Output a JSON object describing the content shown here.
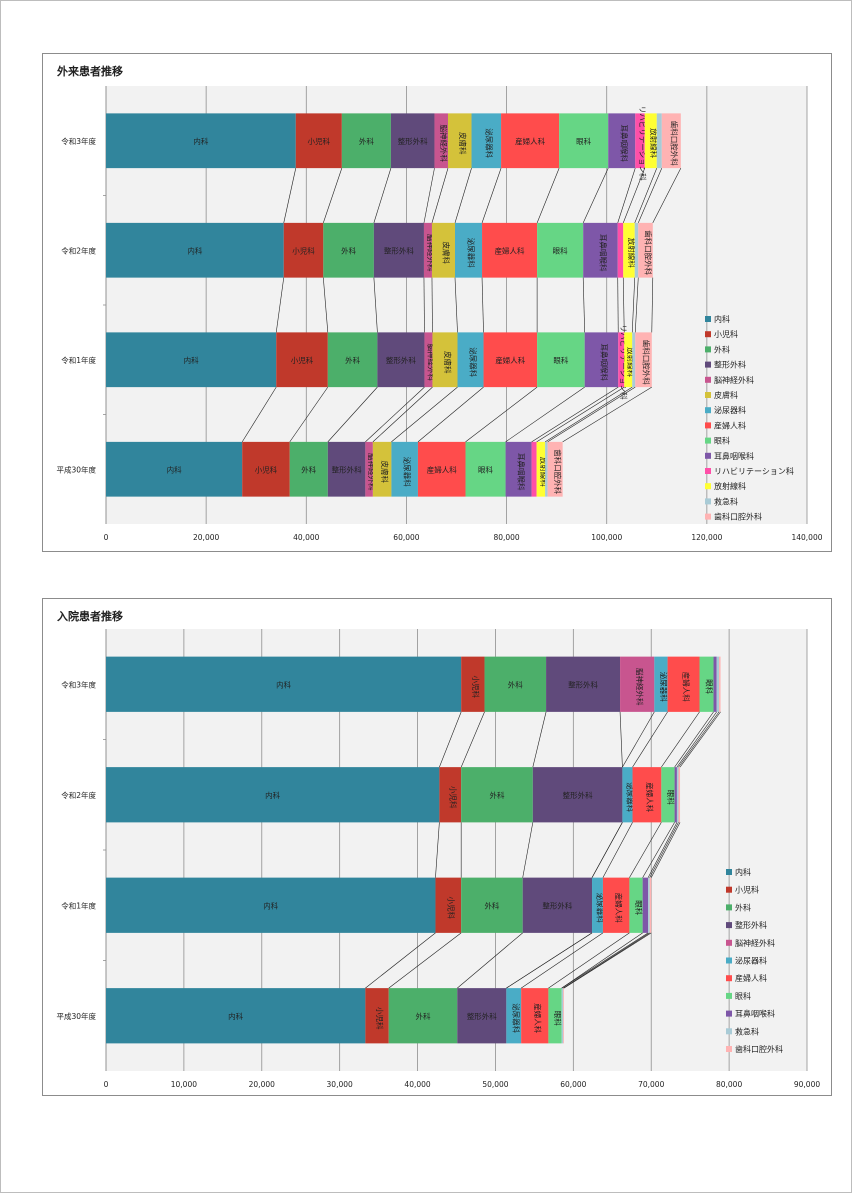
{
  "chart_data": [
    {
      "type": "bar",
      "stacked": true,
      "orientation": "horizontal",
      "title": "外来患者推移",
      "categories": [
        "令和3年度",
        "令和2年度",
        "令和1年度",
        "平成30年度"
      ],
      "xlim": [
        0,
        140000
      ],
      "xticks": [
        0,
        20000,
        40000,
        60000,
        80000,
        100000,
        120000,
        140000
      ],
      "xtick_labels": [
        "0",
        "20,000",
        "40,000",
        "60,000",
        "80,000",
        "100,000",
        "120,000",
        "140,000"
      ],
      "grid": true,
      "legend": "right",
      "series_lines": true,
      "series": [
        {
          "name": "内科",
          "color": "#31859c",
          "values": [
            37900,
            35500,
            34000,
            27200
          ]
        },
        {
          "name": "小児科",
          "color": "#c0392b",
          "values": [
            9200,
            7900,
            10300,
            9500
          ]
        },
        {
          "name": "外科",
          "color": "#4caf6a",
          "values": [
            9800,
            10100,
            9900,
            7600
          ]
        },
        {
          "name": "整形外科",
          "color": "#604a7b",
          "values": [
            8700,
            10000,
            9400,
            7500
          ]
        },
        {
          "name": "脳神経外科",
          "color": "#c8558f",
          "values": [
            2700,
            1600,
            1600,
            1500
          ]
        },
        {
          "name": "皮膚科",
          "color": "#d4c23a",
          "values": [
            4700,
            4600,
            5000,
            3700
          ]
        },
        {
          "name": "泌尿器科",
          "color": "#4aacc6",
          "values": [
            5900,
            5400,
            5200,
            5300
          ]
        },
        {
          "name": "産婦人科",
          "color": "#ff4c4c",
          "values": [
            11600,
            11000,
            10700,
            9500
          ]
        },
        {
          "name": "眼科",
          "color": "#66d685",
          "values": [
            9800,
            9200,
            9500,
            8000
          ]
        },
        {
          "name": "耳鼻咽喉科",
          "color": "#7e57a8",
          "values": [
            5400,
            6900,
            6700,
            5200
          ]
        },
        {
          "name": "リハビリテーション科",
          "color": "#ff4fa8",
          "values": [
            1900,
            1100,
            1200,
            1000
          ]
        },
        {
          "name": "放射線科",
          "color": "#ffff33",
          "values": [
            2400,
            2300,
            1600,
            1700
          ]
        },
        {
          "name": "救急科",
          "color": "#a9cbd6",
          "values": [
            1000,
            700,
            600,
            500
          ]
        },
        {
          "name": "歯科口腔外科",
          "color": "#ffb3b3",
          "values": [
            3800,
            2900,
            3300,
            3000
          ]
        }
      ]
    },
    {
      "type": "bar",
      "stacked": true,
      "orientation": "horizontal",
      "title": "入院患者推移",
      "categories": [
        "令和3年度",
        "令和2年度",
        "令和1年度",
        "平成30年度"
      ],
      "xlim": [
        0,
        90000
      ],
      "xticks": [
        0,
        10000,
        20000,
        30000,
        40000,
        50000,
        60000,
        70000,
        80000,
        90000
      ],
      "xtick_labels": [
        "0",
        "10,000",
        "20,000",
        "30,000",
        "40,000",
        "50,000",
        "60,000",
        "70,000",
        "80,000",
        "90,000"
      ],
      "grid": true,
      "legend": "right",
      "series_lines": true,
      "series": [
        {
          "name": "内科",
          "color": "#31859c",
          "values": [
            45600,
            42800,
            42300,
            33300
          ]
        },
        {
          "name": "小児科",
          "color": "#c0392b",
          "values": [
            3000,
            2800,
            3300,
            3000
          ]
        },
        {
          "name": "外科",
          "color": "#4caf6a",
          "values": [
            7900,
            9200,
            7900,
            8800
          ]
        },
        {
          "name": "整形外科",
          "color": "#604a7b",
          "values": [
            9500,
            11500,
            8900,
            6300
          ]
        },
        {
          "name": "脳神経外科",
          "color": "#c8558f",
          "values": [
            4400,
            0,
            0,
            0
          ]
        },
        {
          "name": "泌尿器科",
          "color": "#4aacc6",
          "values": [
            1700,
            1300,
            1400,
            1900
          ]
        },
        {
          "name": "産婦人科",
          "color": "#ff4c4c",
          "values": [
            4100,
            3700,
            3400,
            3500
          ]
        },
        {
          "name": "眼科",
          "color": "#66d685",
          "values": [
            1800,
            1700,
            1700,
            1700
          ]
        },
        {
          "name": "耳鼻咽喉科",
          "color": "#7e57a8",
          "values": [
            400,
            300,
            700,
            0
          ]
        },
        {
          "name": "救急科",
          "color": "#a9cbd6",
          "values": [
            300,
            200,
            200,
            200
          ]
        },
        {
          "name": "歯科口腔外科",
          "color": "#ffb3b3",
          "values": [
            200,
            200,
            200,
            100
          ]
        }
      ]
    }
  ]
}
